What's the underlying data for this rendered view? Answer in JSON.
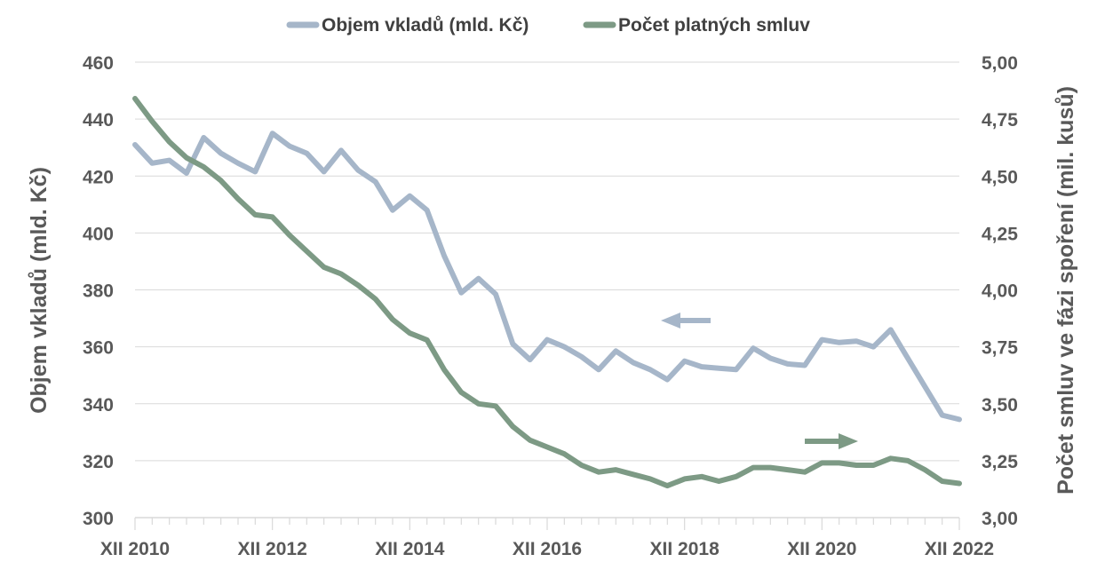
{
  "chart_data": {
    "type": "line",
    "legend_position": "top",
    "grid": true,
    "colors": {
      "deposits": "#a6b6c9",
      "contracts": "#7d9a85",
      "text": "#595959",
      "grid": "#d9d9d9"
    },
    "x_tick_labels": [
      "XII 2010",
      "XII 2012",
      "XII 2014",
      "XII 2016",
      "XII 2018",
      "XII 2020",
      "XII 2022"
    ],
    "y_left": {
      "label": "Objem vkladů (mld. Kč)",
      "min": 300,
      "max": 460,
      "ticks": [
        "300",
        "320",
        "340",
        "360",
        "380",
        "400",
        "420",
        "440",
        "460"
      ]
    },
    "y_right": {
      "label": "Počet smluv ve fázi spoření (mil. kusů)",
      "min": 3.0,
      "max": 5.0,
      "ticks": [
        "3,00",
        "3,25",
        "3,50",
        "3,75",
        "4,00",
        "4,25",
        "4,50",
        "4,75",
        "5,00"
      ]
    },
    "x_points": 49,
    "series": [
      {
        "name": "Objem vkladů (mld. Kč)",
        "axis": "left",
        "values": [
          431,
          424.5,
          425.5,
          421,
          433.5,
          428,
          424.5,
          421.5,
          435,
          430.5,
          428,
          421.5,
          429,
          422,
          418,
          408,
          413,
          408,
          392,
          379,
          384,
          378.5,
          361,
          355.5,
          362.5,
          360,
          356.5,
          352,
          358.5,
          354.5,
          352,
          348.5,
          355,
          353,
          352.5,
          352,
          359.5,
          356,
          354,
          353.5,
          362.5,
          361.5,
          362,
          360,
          366,
          356,
          346,
          336,
          334.5
        ]
      },
      {
        "name": "Počet platných smluv",
        "axis": "right",
        "values": [
          4.84,
          4.74,
          4.65,
          4.58,
          4.54,
          4.48,
          4.4,
          4.33,
          4.32,
          4.24,
          4.17,
          4.1,
          4.07,
          4.02,
          3.96,
          3.87,
          3.81,
          3.78,
          3.65,
          3.55,
          3.5,
          3.49,
          3.4,
          3.34,
          3.31,
          3.28,
          3.23,
          3.2,
          3.21,
          3.19,
          3.17,
          3.14,
          3.17,
          3.18,
          3.16,
          3.18,
          3.22,
          3.22,
          3.21,
          3.2,
          3.24,
          3.24,
          3.23,
          3.23,
          3.26,
          3.25,
          3.21,
          3.16,
          3.15
        ]
      }
    ],
    "annotations": [
      {
        "type": "arrow",
        "direction": "left",
        "series": "Objem vkladů (mld. Kč)"
      },
      {
        "type": "arrow",
        "direction": "right",
        "series": "Počet platných smluv"
      }
    ]
  }
}
